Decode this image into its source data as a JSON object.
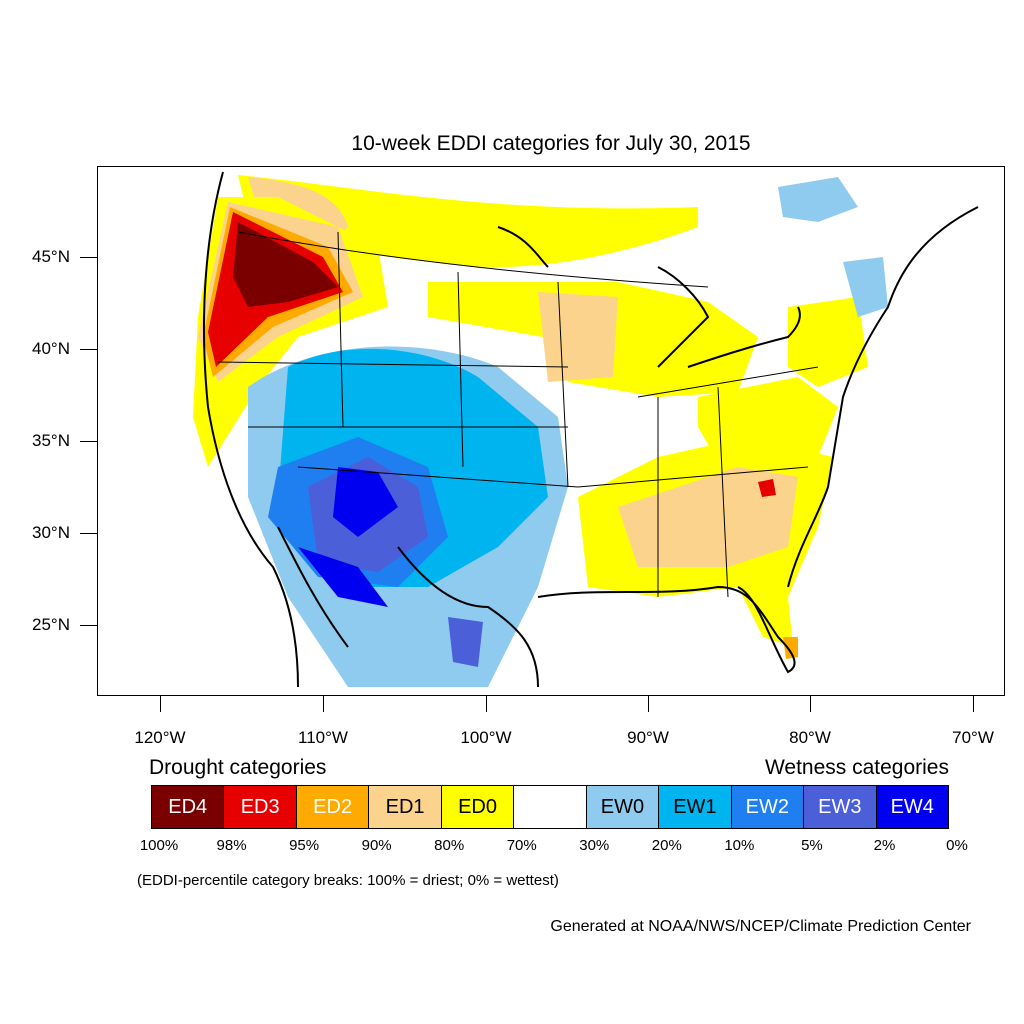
{
  "title": "10-week EDDI categories for July 30, 2015",
  "lat_labels": [
    "45°N",
    "40°N",
    "35°N",
    "30°N",
    "25°N"
  ],
  "lon_labels": [
    "120°W",
    "110°W",
    "100°W",
    "90°W",
    "80°W",
    "70°W"
  ],
  "legend": {
    "drought_heading": "Drought categories",
    "wetness_heading": "Wetness categories",
    "categories": [
      {
        "label": "ED4",
        "color": "#7a0000",
        "text_color": "#ffffff"
      },
      {
        "label": "ED3",
        "color": "#e60000",
        "text_color": "#ffffff"
      },
      {
        "label": "ED2",
        "color": "#ffaa00",
        "text_color": "#ffffff"
      },
      {
        "label": "ED1",
        "color": "#fcd38c",
        "text_color": "#000000"
      },
      {
        "label": "ED0",
        "color": "#ffff00",
        "text_color": "#000000"
      },
      {
        "label": "",
        "color": "#ffffff",
        "text_color": "#000000"
      },
      {
        "label": "EW0",
        "color": "#8ecbef",
        "text_color": "#000000"
      },
      {
        "label": "EW1",
        "color": "#00b4f0",
        "text_color": "#000000"
      },
      {
        "label": "EW2",
        "color": "#1f7ef0",
        "text_color": "#ffffff"
      },
      {
        "label": "EW3",
        "color": "#4a5fd8",
        "text_color": "#ffffff"
      },
      {
        "label": "EW4",
        "color": "#0000f0",
        "text_color": "#ffffff"
      }
    ],
    "breaks": [
      "100%",
      "98%",
      "95%",
      "90%",
      "80%",
      "70%",
      "30%",
      "20%",
      "10%",
      "5%",
      "2%",
      "0%"
    ]
  },
  "note": "(EDDI-percentile category breaks: 100% = driest; 0% = wettest)",
  "credit": "Generated at NOAA/NWS/NCEP/Climate Prediction Center"
}
